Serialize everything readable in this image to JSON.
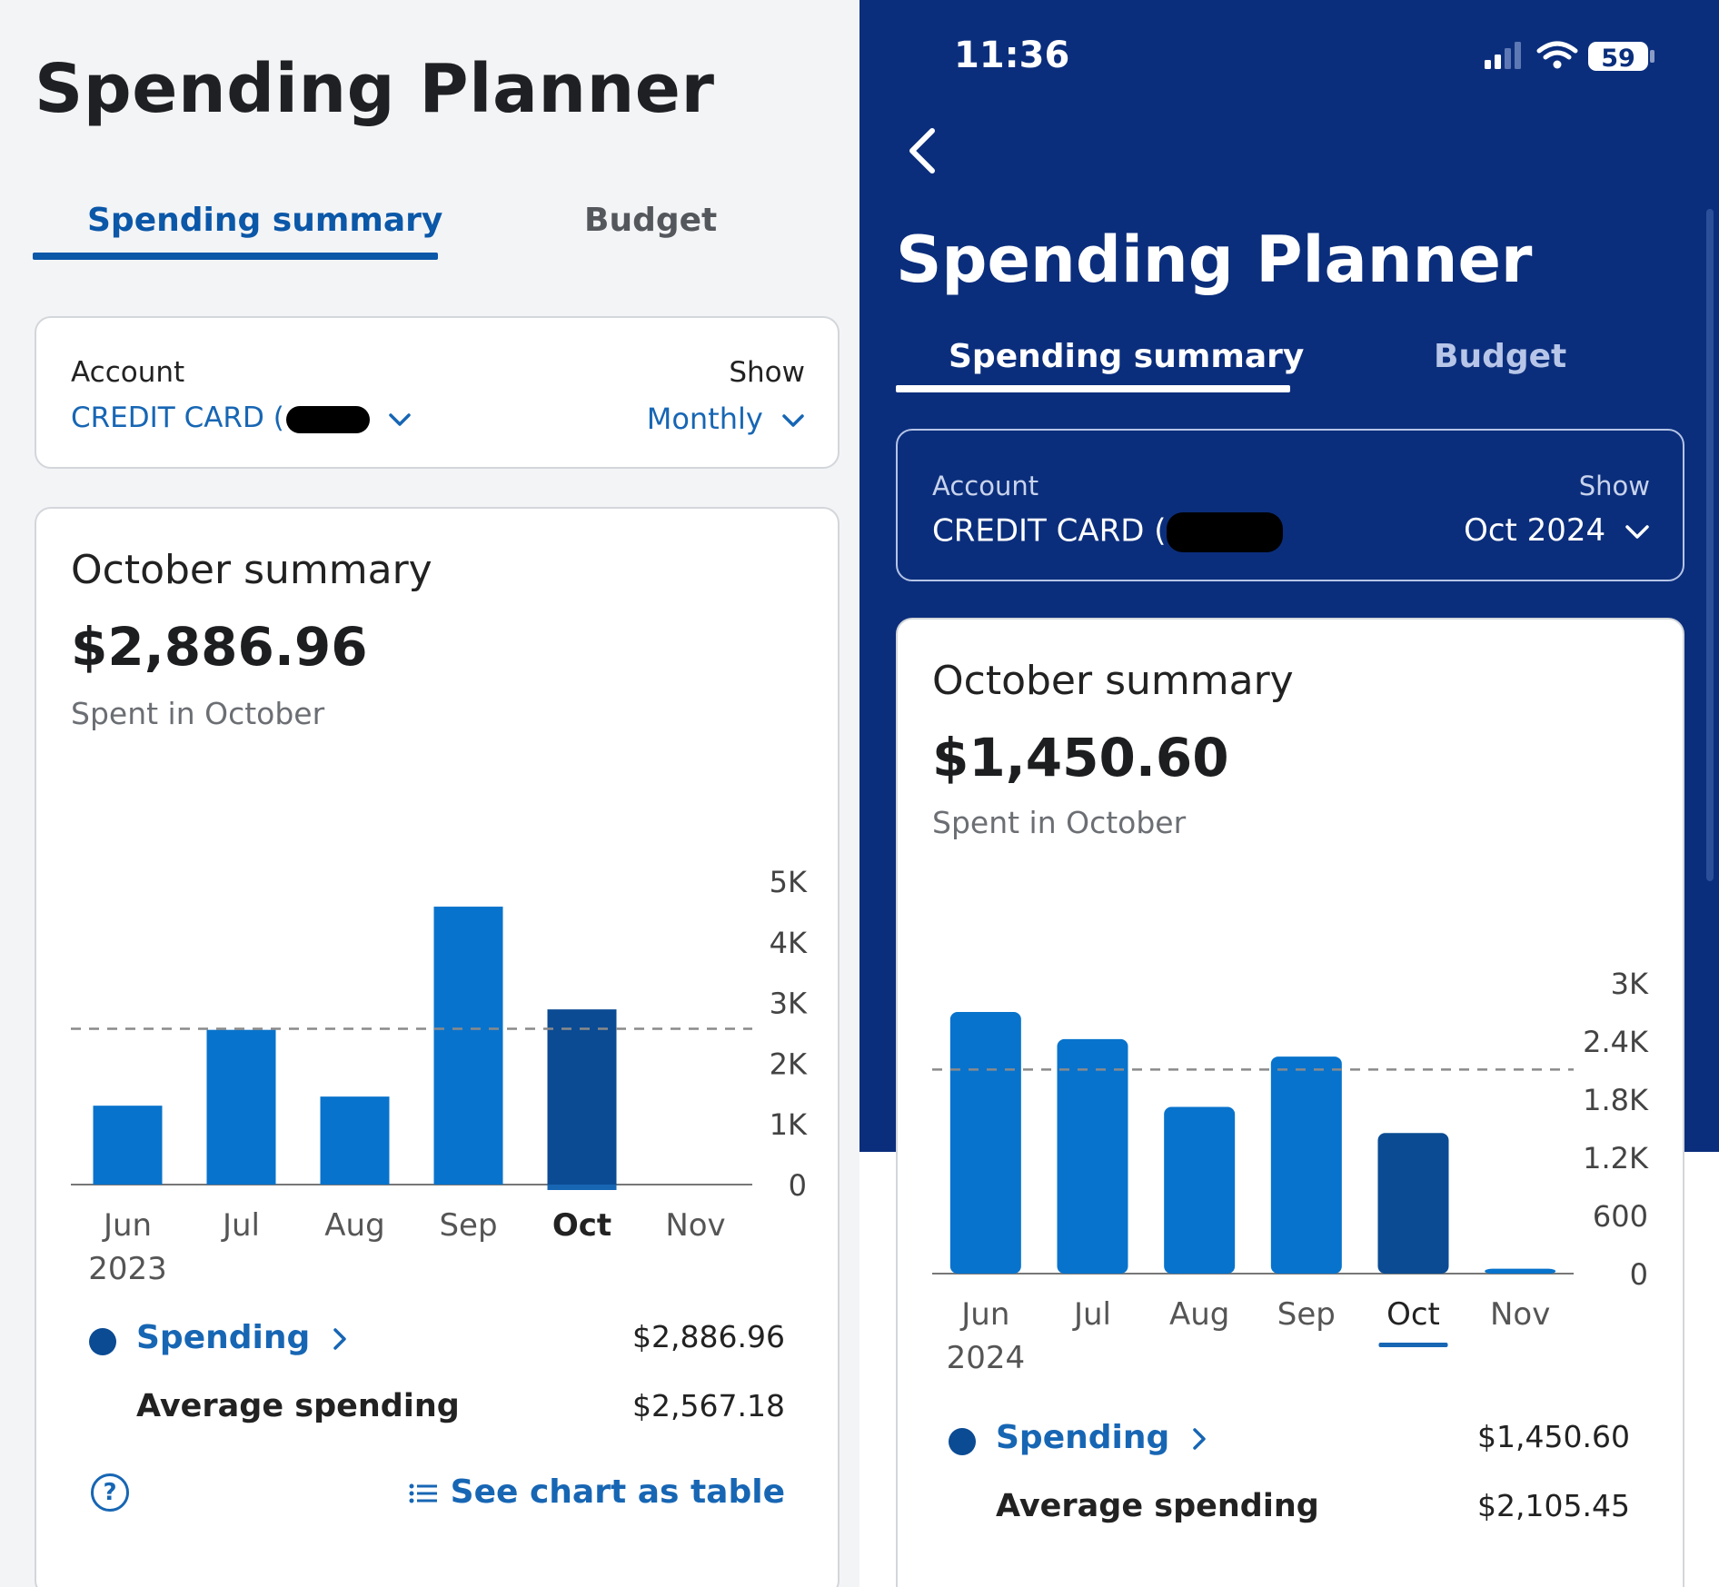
{
  "left": {
    "title": "Spending Planner",
    "tabs": [
      {
        "label": "Spending summary",
        "active": true
      },
      {
        "label": "Budget",
        "active": false
      }
    ],
    "account": {
      "label": "Account",
      "value": "CREDIT CARD (",
      "show_label": "Show",
      "show_value": "Monthly"
    },
    "summary": {
      "title": "October summary",
      "amount": "$2,886.96",
      "subtitle": "Spent in October"
    },
    "legend": {
      "spending_label": "Spending",
      "spending_value": "$2,886.96",
      "average_label": "Average spending",
      "average_value": "$2,567.18"
    },
    "table_link": "See chart as table",
    "help_icon": "?"
  },
  "right": {
    "status": {
      "time": "11:36",
      "battery": "59"
    },
    "title": "Spending Planner",
    "tabs": [
      {
        "label": "Spending summary",
        "active": true
      },
      {
        "label": "Budget",
        "active": false
      }
    ],
    "account": {
      "label": "Account",
      "value": "CREDIT CARD (",
      "show_label": "Show",
      "show_value": "Oct 2024"
    },
    "summary": {
      "title": "October summary",
      "amount": "$1,450.60",
      "subtitle": "Spent in October"
    },
    "legend": {
      "spending_label": "Spending",
      "spending_value": "$1,450.60",
      "average_label": "Average spending",
      "average_value": "$2,105.45"
    }
  },
  "colors": {
    "bar": "#0873cc",
    "bar_selected": "#0b4b93",
    "accent": "#1766b4",
    "header_blue": "#0b2e7c"
  },
  "icons": [
    "chevron-down-icon",
    "back-arrow-icon",
    "signal-icon",
    "wifi-icon",
    "battery-icon",
    "help-icon",
    "list-icon",
    "chevron-right-icon"
  ],
  "chart_data": [
    {
      "type": "bar",
      "title": "",
      "categories": [
        "Jun",
        "Jul",
        "Aug",
        "Sep",
        "Oct",
        "Nov"
      ],
      "year_label": "2023",
      "values": [
        1300,
        2550,
        1450,
        4580,
        2886.96,
        0
      ],
      "selected": "Oct",
      "average": 2567.18,
      "ylim": [
        0,
        5000
      ],
      "yticks": [
        "0",
        "1K",
        "2K",
        "3K",
        "4K",
        "5K"
      ],
      "ytick_values": [
        0,
        1000,
        2000,
        3000,
        4000,
        5000
      ]
    },
    {
      "type": "bar",
      "title": "",
      "categories": [
        "Jun",
        "Jul",
        "Aug",
        "Sep",
        "Oct",
        "Nov"
      ],
      "year_label": "2024",
      "values": [
        2700,
        2420,
        1720,
        2240,
        1450.6,
        50
      ],
      "selected": "Oct",
      "average": 2105.45,
      "ylim": [
        0,
        3000
      ],
      "yticks": [
        "0",
        "600",
        "1.2K",
        "1.8K",
        "2.4K",
        "3K"
      ],
      "ytick_values": [
        0,
        600,
        1200,
        1800,
        2400,
        3000
      ]
    }
  ]
}
